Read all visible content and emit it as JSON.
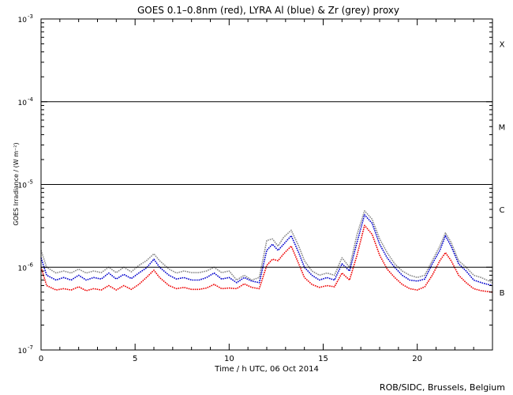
{
  "chart_data": {
    "type": "line",
    "title": "GOES 0.1–0.8nm (red), LYRA Al (blue) & Zr (grey) proxy",
    "xlabel": "Time / h UTC, 06 Oct 2014",
    "ylabel": "GOES Irradiance / (W m⁻²)",
    "xlim": [
      0,
      24
    ],
    "ylim": [
      1e-07,
      0.001
    ],
    "yscale": "log",
    "x_ticks": [
      {
        "value": 0,
        "label": "0"
      },
      {
        "value": 5,
        "label": "5"
      },
      {
        "value": 10,
        "label": "10"
      },
      {
        "value": 15,
        "label": "15"
      },
      {
        "value": 20,
        "label": "20"
      }
    ],
    "y_ticks": [
      {
        "value": 1e-07,
        "base": "10",
        "exp": "-7"
      },
      {
        "value": 1e-06,
        "base": "10",
        "exp": "-6"
      },
      {
        "value": 1e-05,
        "base": "10",
        "exp": "-5"
      },
      {
        "value": 0.0001,
        "base": "10",
        "exp": "-4"
      },
      {
        "value": 0.001,
        "base": "10",
        "exp": "-3"
      }
    ],
    "flare_thresholds": [
      1e-06,
      1e-05,
      0.0001
    ],
    "flare_classes": [
      {
        "label": "X",
        "value": 0.0005
      },
      {
        "label": "M",
        "value": 5e-05
      },
      {
        "label": "C",
        "value": 5e-06
      },
      {
        "label": "B",
        "value": 5e-07
      }
    ],
    "series": [
      {
        "name": "Zr (grey)",
        "color": "#888888",
        "x": [
          0,
          0.3,
          0.8,
          1.2,
          1.6,
          2.0,
          2.4,
          2.8,
          3.2,
          3.6,
          4.0,
          4.4,
          4.8,
          5.2,
          5.6,
          6.0,
          6.3,
          6.8,
          7.2,
          7.6,
          8.0,
          8.4,
          8.8,
          9.2,
          9.6,
          10.0,
          10.4,
          10.8,
          11.2,
          11.6,
          12.0,
          12.3,
          12.6,
          12.9,
          13.3,
          13.7,
          14.0,
          14.4,
          14.8,
          15.2,
          15.6,
          16.0,
          16.4,
          16.8,
          17.2,
          17.6,
          18.0,
          18.4,
          18.8,
          19.2,
          19.6,
          20.0,
          20.4,
          20.8,
          21.2,
          21.5,
          21.8,
          22.2,
          22.6,
          23.0,
          23.4,
          24.0
        ],
        "y": [
          1.6e-06,
          1e-06,
          8.5e-07,
          9e-07,
          8.5e-07,
          9.5e-07,
          8.5e-07,
          9e-07,
          8.6e-07,
          1e-06,
          8.6e-07,
          1e-06,
          8.8e-07,
          1.05e-06,
          1.2e-06,
          1.45e-06,
          1.2e-06,
          9.5e-07,
          8.5e-07,
          9e-07,
          8.6e-07,
          8.6e-07,
          9e-07,
          1e-06,
          8.6e-07,
          9e-07,
          7e-07,
          8e-07,
          7e-07,
          7.5e-07,
          2.1e-06,
          2.2e-06,
          1.8e-06,
          2.3e-06,
          2.8e-06,
          1.8e-06,
          1.2e-06,
          9e-07,
          8e-07,
          8.5e-07,
          8e-07,
          1.3e-06,
          1e-06,
          2.5e-06,
          4.8e-06,
          3.8e-06,
          2.2e-06,
          1.5e-06,
          1.1e-06,
          9e-07,
          8e-07,
          7.5e-07,
          8e-07,
          1.2e-06,
          1.8e-06,
          2.6e-06,
          2e-06,
          1.2e-06,
          1e-06,
          8e-07,
          7.5e-07,
          6.5e-07
        ]
      },
      {
        "name": "LYRA Al (blue)",
        "color": "#0000cc",
        "x": [
          0,
          0.3,
          0.8,
          1.2,
          1.6,
          2.0,
          2.4,
          2.8,
          3.2,
          3.6,
          4.0,
          4.4,
          4.8,
          5.2,
          5.6,
          6.0,
          6.3,
          6.8,
          7.2,
          7.6,
          8.0,
          8.4,
          8.8,
          9.2,
          9.6,
          10.0,
          10.4,
          10.8,
          11.2,
          11.6,
          12.0,
          12.3,
          12.6,
          12.9,
          13.3,
          13.7,
          14.0,
          14.4,
          14.8,
          15.2,
          15.6,
          16.0,
          16.4,
          16.8,
          17.2,
          17.6,
          18.0,
          18.4,
          18.8,
          19.2,
          19.6,
          20.0,
          20.4,
          20.8,
          21.2,
          21.5,
          21.8,
          22.2,
          22.6,
          23.0,
          23.4,
          24.0
        ],
        "y": [
          1.3e-06,
          8e-07,
          7e-07,
          7.5e-07,
          7e-07,
          8e-07,
          7e-07,
          7.5e-07,
          7.2e-07,
          8.5e-07,
          7.2e-07,
          8.2e-07,
          7.3e-07,
          8.5e-07,
          9.8e-07,
          1.25e-06,
          1e-06,
          8e-07,
          7.2e-07,
          7.5e-07,
          7e-07,
          7e-07,
          7.5e-07,
          8.5e-07,
          7.2e-07,
          7.5e-07,
          6.5e-07,
          7.5e-07,
          6.8e-07,
          6.5e-07,
          1.6e-06,
          1.9e-06,
          1.6e-06,
          1.9e-06,
          2.4e-06,
          1.5e-06,
          1e-06,
          8e-07,
          7e-07,
          7.5e-07,
          7e-07,
          1.1e-06,
          9e-07,
          2e-06,
          4.3e-06,
          3.4e-06,
          1.9e-06,
          1.3e-06,
          1e-06,
          8e-07,
          7e-07,
          6.8e-07,
          7.2e-07,
          1.1e-06,
          1.6e-06,
          2.4e-06,
          1.8e-06,
          1.1e-06,
          9e-07,
          7e-07,
          6.5e-07,
          6e-07
        ]
      },
      {
        "name": "GOES 0.1–0.8nm (red)",
        "color": "#ee0000",
        "x": [
          0,
          0.3,
          0.8,
          1.2,
          1.6,
          2.0,
          2.4,
          2.8,
          3.2,
          3.6,
          4.0,
          4.4,
          4.8,
          5.2,
          5.6,
          6.0,
          6.3,
          6.8,
          7.2,
          7.6,
          8.0,
          8.4,
          8.8,
          9.2,
          9.6,
          10.0,
          10.4,
          10.8,
          11.2,
          11.6,
          12.0,
          12.3,
          12.6,
          12.9,
          13.3,
          13.7,
          14.0,
          14.4,
          14.8,
          15.2,
          15.6,
          16.0,
          16.4,
          16.8,
          17.2,
          17.6,
          18.0,
          18.4,
          18.8,
          19.2,
          19.6,
          20.0,
          20.4,
          20.8,
          21.2,
          21.5,
          21.8,
          22.2,
          22.6,
          23.0,
          23.4,
          24.0
        ],
        "y": [
          1e-06,
          6e-07,
          5.3e-07,
          5.5e-07,
          5.3e-07,
          5.8e-07,
          5.2e-07,
          5.5e-07,
          5.3e-07,
          6e-07,
          5.3e-07,
          6e-07,
          5.4e-07,
          6.2e-07,
          7.5e-07,
          9.2e-07,
          7.5e-07,
          6e-07,
          5.5e-07,
          5.7e-07,
          5.4e-07,
          5.4e-07,
          5.6e-07,
          6.2e-07,
          5.5e-07,
          5.6e-07,
          5.5e-07,
          6.3e-07,
          5.7e-07,
          5.5e-07,
          1.05e-06,
          1.25e-06,
          1.2e-06,
          1.45e-06,
          1.8e-06,
          1.1e-06,
          7.5e-07,
          6.2e-07,
          5.7e-07,
          6e-07,
          5.8e-07,
          8.5e-07,
          7e-07,
          1.4e-06,
          3.2e-06,
          2.5e-06,
          1.4e-06,
          9.5e-07,
          7.5e-07,
          6.2e-07,
          5.5e-07,
          5.3e-07,
          5.8e-07,
          8e-07,
          1.2e-06,
          1.5e-06,
          1.2e-06,
          8e-07,
          6.5e-07,
          5.5e-07,
          5.2e-07,
          5e-07
        ]
      }
    ]
  },
  "credit": "ROB/SIDC, Brussels, Belgium"
}
